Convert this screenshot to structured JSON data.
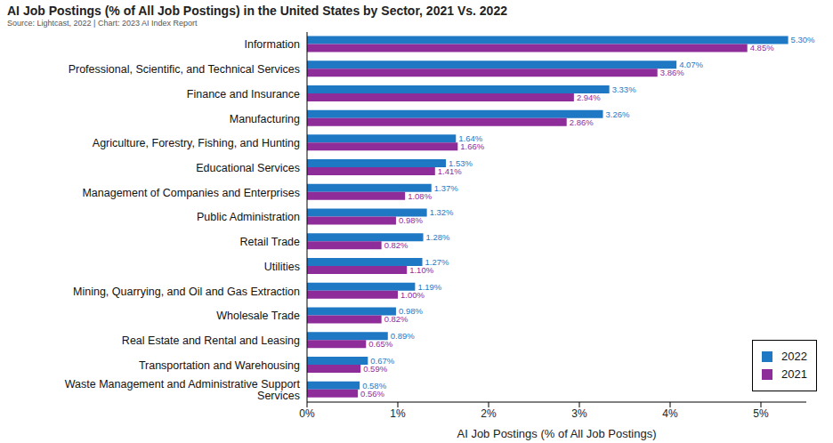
{
  "chart_data": {
    "type": "bar",
    "orientation": "horizontal",
    "title": "AI Job Postings (% of All Job Postings) in the United States by Sector, 2021 Vs. 2022",
    "subtitle": "Source: Lightcast, 2022 | Chart: 2023 AI Index Report",
    "x_label": "AI Job Postings (% of All Job Postings)",
    "categories": [
      "Information",
      "Professional, Scientific, and Technical Services",
      "Finance and Insurance",
      "Manufacturing",
      "Agriculture, Forestry, Fishing, and Hunting",
      "Educational Services",
      "Management of Companies and Enterprises",
      "Public Administration",
      "Retail Trade",
      "Utilities",
      "Mining, Quarrying, and Oil and Gas Extraction",
      "Wholesale Trade",
      "Real Estate and Rental and Leasing",
      "Transportation and Warehousing",
      "Waste Management and Administrative Support Services"
    ],
    "series": [
      {
        "name": "2022",
        "color": "#1f78c4",
        "values": [
          5.3,
          4.07,
          3.33,
          3.26,
          1.64,
          1.53,
          1.37,
          1.32,
          1.28,
          1.27,
          1.19,
          0.98,
          0.89,
          0.67,
          0.58
        ],
        "value_labels": [
          "5.30%",
          "4.07%",
          "3.33%",
          "3.26%",
          "1.64%",
          "1.53%",
          "1.37%",
          "1.32%",
          "1.28%",
          "1.27%",
          "1.19%",
          "0.98%",
          "0.89%",
          "0.67%",
          "0.58%"
        ]
      },
      {
        "name": "2021",
        "color": "#8e2c9a",
        "values": [
          4.85,
          3.86,
          2.94,
          2.86,
          1.66,
          1.41,
          1.08,
          0.98,
          0.82,
          1.1,
          1.0,
          0.82,
          0.65,
          0.59,
          0.56
        ],
        "value_labels": [
          "4.85%",
          "3.86%",
          "2.94%",
          "2.86%",
          "1.66%",
          "1.41%",
          "1.08%",
          "0.98%",
          "0.82%",
          "1.10%",
          "1.00%",
          "0.82%",
          "0.65%",
          "0.59%",
          "0.56%"
        ]
      }
    ],
    "xlim": [
      0,
      5.5
    ],
    "xticks": [
      {
        "value": 0,
        "label": "0%"
      },
      {
        "value": 1,
        "label": "1%"
      },
      {
        "value": 2,
        "label": "2%"
      },
      {
        "value": 3,
        "label": "3%"
      },
      {
        "value": 4,
        "label": "4%"
      },
      {
        "value": 5,
        "label": "5%"
      }
    ],
    "grid": false,
    "data_labels": true,
    "legend": "lower right"
  }
}
